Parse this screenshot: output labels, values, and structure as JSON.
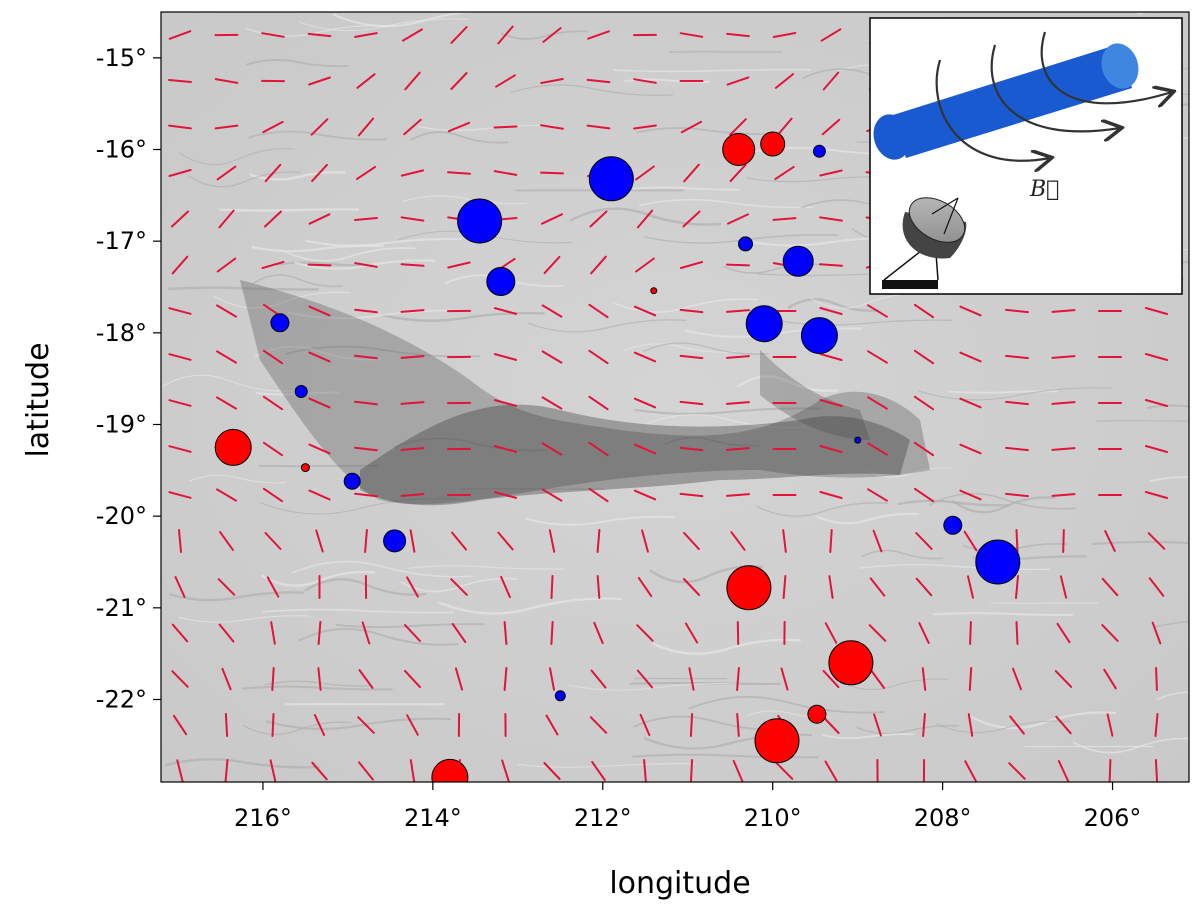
{
  "chart_data": {
    "type": "scatter",
    "xlabel": "longitude",
    "ylabel": "latitude",
    "xlim": [
      217.2,
      205.1
    ],
    "ylim": [
      -22.9,
      -14.5
    ],
    "x_reversed": true,
    "x_ticks": [
      216,
      214,
      212,
      210,
      208,
      206
    ],
    "x_tick_labels": [
      "216°",
      "214°",
      "212°",
      "210°",
      "208°",
      "206°"
    ],
    "y_ticks": [
      -15,
      -16,
      -17,
      -18,
      -19,
      -20,
      -21,
      -22
    ],
    "y_tick_labels": [
      "-15°",
      "-16°",
      "-17°",
      "-18°",
      "-19°",
      "-20°",
      "-21°",
      "-22°"
    ],
    "background": "grayscale column-density map with magnetic-field line texture",
    "vector_color": "#e0143c",
    "marker_colors": {
      "red": "#ff0000",
      "blue": "#0000ff"
    },
    "series": [
      {
        "color": "red",
        "points": [
          {
            "lon": 210.4,
            "lat": -16.0,
            "size": 16
          },
          {
            "lon": 210.0,
            "lat": -15.94,
            "size": 12
          },
          {
            "lon": 211.4,
            "lat": -17.54,
            "size": 3
          },
          {
            "lon": 216.35,
            "lat": -19.25,
            "size": 18
          },
          {
            "lon": 215.5,
            "lat": -19.47,
            "size": 4
          },
          {
            "lon": 210.28,
            "lat": -20.78,
            "size": 22
          },
          {
            "lon": 209.08,
            "lat": -21.6,
            "size": 22
          },
          {
            "lon": 209.48,
            "lat": -22.16,
            "size": 9
          },
          {
            "lon": 209.95,
            "lat": -22.45,
            "size": 22
          },
          {
            "lon": 213.8,
            "lat": -22.85,
            "size": 18
          }
        ]
      },
      {
        "color": "blue",
        "points": [
          {
            "lon": 211.9,
            "lat": -16.32,
            "size": 22
          },
          {
            "lon": 209.45,
            "lat": -16.02,
            "size": 6
          },
          {
            "lon": 213.45,
            "lat": -16.78,
            "size": 22
          },
          {
            "lon": 210.32,
            "lat": -17.03,
            "size": 7
          },
          {
            "lon": 209.7,
            "lat": -17.22,
            "size": 15
          },
          {
            "lon": 213.2,
            "lat": -17.44,
            "size": 14
          },
          {
            "lon": 215.8,
            "lat": -17.89,
            "size": 9
          },
          {
            "lon": 210.1,
            "lat": -17.9,
            "size": 18
          },
          {
            "lon": 209.45,
            "lat": -18.03,
            "size": 18
          },
          {
            "lon": 215.55,
            "lat": -18.64,
            "size": 6
          },
          {
            "lon": 209.0,
            "lat": -19.17,
            "size": 3
          },
          {
            "lon": 214.95,
            "lat": -19.62,
            "size": 8
          },
          {
            "lon": 214.45,
            "lat": -20.27,
            "size": 11
          },
          {
            "lon": 207.88,
            "lat": -20.1,
            "size": 9
          },
          {
            "lon": 207.35,
            "lat": -20.5,
            "size": 22
          },
          {
            "lon": 212.5,
            "lat": -21.96,
            "size": 5
          }
        ]
      }
    ],
    "inset": {
      "description_symbols": [
        "blue filament cylinder",
        "helical magnetic field arrows",
        "radio telescope dish"
      ],
      "field_label": "B⃗"
    }
  }
}
